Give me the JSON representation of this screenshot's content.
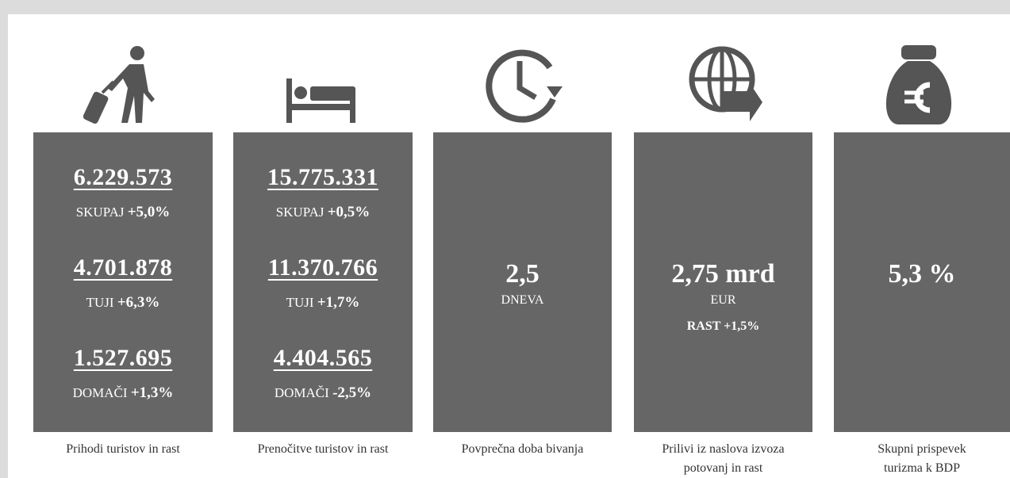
{
  "columns": [
    {
      "stats": [
        {
          "number": "6.229.573",
          "label": "SKUPAJ",
          "change": "+5,0%"
        },
        {
          "number": "4.701.878",
          "label": "TUJI",
          "change": "+6,3%"
        },
        {
          "number": "1.527.695",
          "label": "DOMAČI",
          "change": "+1,3%"
        }
      ],
      "caption": [
        "Prihodi turistov in rast"
      ]
    },
    {
      "stats": [
        {
          "number": "15.775.331",
          "label": "SKUPAJ",
          "change": "+0,5%"
        },
        {
          "number": "11.370.766",
          "label": "TUJI",
          "change": "+1,7%"
        },
        {
          "number": "4.404.565",
          "label": "DOMAČI",
          "change": "-2,5%"
        }
      ],
      "caption": [
        "Prenočitve turistov in rast"
      ]
    },
    {
      "value": "2,5",
      "unit": "DNEVA",
      "caption": [
        "Povprečna doba bivanja"
      ]
    },
    {
      "value": "2,75 mrd",
      "unit": "EUR",
      "extra_label": "RAST",
      "extra_change": "+1,5%",
      "caption": [
        "Prilivi iz naslova izvoza",
        "potovanj in rast"
      ]
    },
    {
      "value": "5,3 %",
      "caption": [
        "Skupni prispevek",
        "turizma k BDP"
      ]
    }
  ]
}
